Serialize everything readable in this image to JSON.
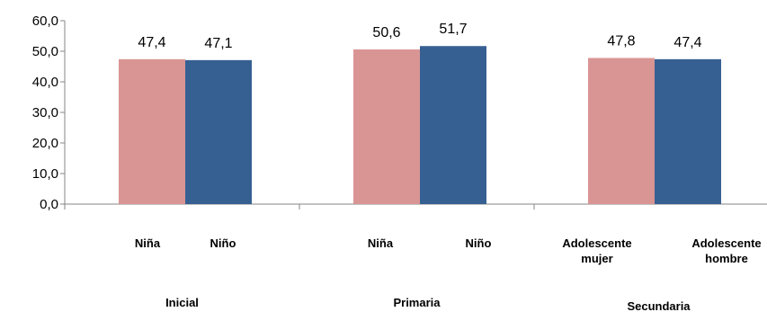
{
  "chart_data": {
    "type": "bar",
    "title": "",
    "xlabel": "",
    "ylabel": "",
    "ylim": [
      0,
      60
    ],
    "yticks": [
      "0,0",
      "10,0",
      "20,0",
      "30,0",
      "40,0",
      "50,0",
      "60,0"
    ],
    "grid": false,
    "legend": "none",
    "groups": [
      {
        "name": "Inicial",
        "bars": [
          {
            "label": [
              "Niña"
            ],
            "value": 47.4,
            "value_label": "47,4",
            "color": "#d99594"
          },
          {
            "label": [
              "Niño"
            ],
            "value": 47.1,
            "value_label": "47,1",
            "color": "#376092"
          }
        ]
      },
      {
        "name": "Primaria",
        "bars": [
          {
            "label": [
              "Niña"
            ],
            "value": 50.6,
            "value_label": "50,6",
            "color": "#d99594"
          },
          {
            "label": [
              "Niño"
            ],
            "value": 51.7,
            "value_label": "51,7",
            "color": "#376092"
          }
        ]
      },
      {
        "name": "Secundaria",
        "bars": [
          {
            "label": [
              "Adolescente",
              "mujer"
            ],
            "value": 47.8,
            "value_label": "47,8",
            "color": "#d99594"
          },
          {
            "label": [
              "Adolescente",
              "hombre"
            ],
            "value": 47.4,
            "value_label": "47,4",
            "color": "#376092"
          }
        ]
      }
    ]
  }
}
